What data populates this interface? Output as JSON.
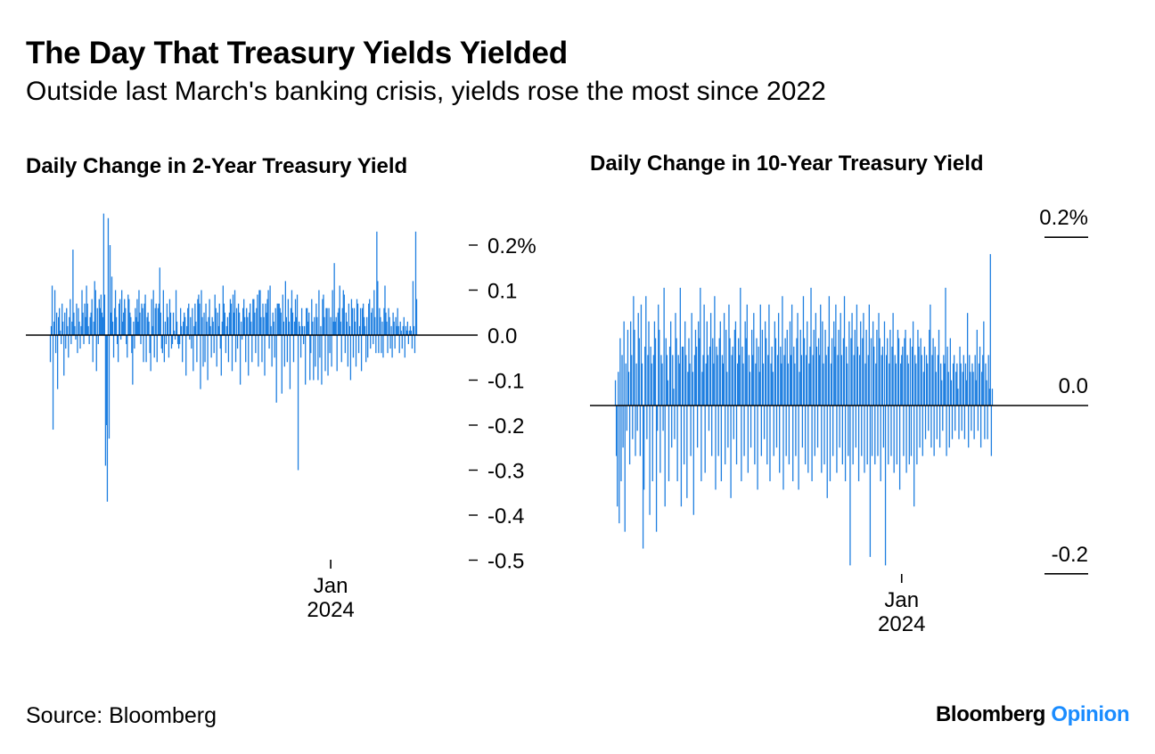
{
  "header": {
    "title": "The Day That Treasury Yields Yielded",
    "subtitle": "Outside last March's banking crisis, yields rose the most since 2022"
  },
  "footer": {
    "source": "Source: Bloomberg",
    "brand_primary": "Bloomberg",
    "brand_secondary": "Opinion"
  },
  "colors": {
    "bar": "#1f7fe0",
    "axis": "#000000",
    "brand_accent": "#1a8cff"
  },
  "chart_data": [
    {
      "type": "bar",
      "title": "Daily Change in 2-Year Treasury Yield",
      "unit": "%",
      "ylim": [
        -0.6,
        0.28
      ],
      "y_ticks": [
        0.2,
        0.1,
        0.0,
        -0.1,
        -0.2,
        -0.3,
        -0.4,
        -0.5
      ],
      "y_tick_labels": [
        "0.2%",
        "0.1",
        "0.0",
        "-0.1",
        "-0.2",
        "-0.3",
        "-0.4",
        "-0.5"
      ],
      "axis_position": "right",
      "x_ticks": [
        {
          "index": 310,
          "label_line1": "Jan",
          "label_line2": "2024"
        }
      ],
      "series": [
        {
          "values": [
            -0.06,
            0.02,
            0.11,
            -0.21,
            0.03,
            0.1,
            -0.04,
            0.05,
            -0.12,
            0.04,
            0.06,
            0.01,
            -0.02,
            0.07,
            0.03,
            -0.09,
            0.05,
            -0.03,
            0.06,
            0.02,
            -0.05,
            0.04,
            0.08,
            -0.02,
            0.03,
            0.19,
            0.05,
            0.02,
            -0.01,
            0.07,
            -0.04,
            0.06,
            0.03,
            -0.03,
            0.02,
            0.1,
            0.05,
            -0.02,
            0.07,
            0.04,
            0.11,
            0.07,
            0.02,
            -0.02,
            0.04,
            0.05,
            0.08,
            -0.06,
            0.03,
            0.12,
            0.1,
            -0.08,
            0.06,
            -0.02,
            0.08,
            0.06,
            0.09,
            0.05,
            0.04,
            0.27,
            0.09,
            -0.29,
            -0.2,
            -0.37,
            0.26,
            -0.23,
            0.2,
            0.05,
            0.13,
            0.03,
            -0.05,
            0.06,
            0.1,
            0.04,
            -0.02,
            -0.06,
            0.07,
            0.08,
            -0.01,
            0.1,
            0.03,
            0.05,
            0.08,
            0.06,
            -0.02,
            -0.05,
            0.09,
            0.08,
            0.05,
            0.04,
            -0.04,
            -0.11,
            0.03,
            -0.03,
            0.06,
            0.04,
            0.08,
            0.03,
            0.1,
            0.05,
            -0.02,
            0.07,
            0.06,
            -0.06,
            0.07,
            0.09,
            -0.06,
            0.04,
            0.05,
            0.03,
            -0.04,
            -0.08,
            0.08,
            0.02,
            0.1,
            -0.05,
            0.06,
            0.07,
            -0.06,
            0.06,
            0.07,
            0.15,
            0.05,
            -0.03,
            -0.04,
            0.1,
            -0.06,
            0.03,
            -0.02,
            0.07,
            0.04,
            -0.05,
            0.08,
            0.05,
            -0.03,
            -0.02,
            0.05,
            0.01,
            -0.01,
            0.1,
            0.03,
            -0.02,
            -0.03,
            -0.02,
            0.06,
            0.02,
            -0.06,
            0.03,
            0.05,
            0.04,
            -0.09,
            0.02,
            0.06,
            0.07,
            -0.01,
            0.04,
            -0.03,
            0.06,
            -0.08,
            0.02,
            0.07,
            0.03,
            -0.06,
            0.08,
            0.09,
            0.07,
            -0.12,
            0.1,
            0.04,
            -0.07,
            0.05,
            -0.06,
            0.07,
            0.03,
            -0.1,
            0.04,
            0.08,
            0.02,
            -0.05,
            0.04,
            0.03,
            -0.04,
            0.09,
            0.06,
            -0.07,
            0.05,
            0.02,
            0.07,
            -0.03,
            -0.09,
            0.03,
            0.11,
            0.07,
            0.05,
            -0.04,
            0.02,
            0.04,
            -0.06,
            0.05,
            0.08,
            0.07,
            -0.08,
            0.09,
            0.05,
            0.1,
            -0.06,
            0.06,
            -0.03,
            0.07,
            0.05,
            -0.11,
            0.03,
            -0.01,
            0.06,
            0.08,
            0.04,
            -0.06,
            0.06,
            0.04,
            -0.09,
            0.05,
            0.07,
            0.03,
            -0.06,
            0.08,
            0.08,
            0.05,
            -0.04,
            0.06,
            0.09,
            -0.07,
            0.1,
            0.1,
            0.04,
            -0.06,
            0.07,
            0.04,
            -0.09,
            0.07,
            0.05,
            0.08,
            0.1,
            -0.03,
            0.11,
            0.02,
            -0.07,
            0.05,
            0.03,
            -0.05,
            0.06,
            -0.15,
            0.07,
            0.07,
            0.07,
            0.06,
            0.05,
            -0.13,
            0.09,
            0.03,
            -0.07,
            0.12,
            0.04,
            -0.06,
            0.08,
            0.03,
            -0.12,
            0.06,
            0.1,
            0.05,
            -0.06,
            0.03,
            0.08,
            0.04,
            0.09,
            -0.3,
            0.03,
            0.02,
            -0.05,
            0.06,
            0.02,
            -0.02,
            0.02,
            -0.11,
            0.06,
            0.06,
            0.03,
            0.05,
            -0.1,
            -0.04,
            0.08,
            0.03,
            -0.1,
            0.04,
            -0.07,
            0.07,
            0.04,
            -0.1,
            0.1,
            -0.05,
            0.02,
            -0.11,
            0.08,
            0.09,
            0.04,
            -0.08,
            0.06,
            0.06,
            -0.09,
            0.06,
            -0.04,
            0.04,
            -0.07,
            0.1,
            0.03,
            0.16,
            0.03,
            0.04,
            -0.08,
            0.05,
            0.06,
            0.11,
            0.03,
            -0.06,
            0.06,
            0.1,
            0.09,
            -0.04,
            0.05,
            0.03,
            -0.07,
            0.07,
            0.02,
            -0.1,
            0.08,
            0.06,
            -0.05,
            0.06,
            0.03,
            -0.07,
            0.08,
            0.07,
            -0.04,
            0.02,
            0.06,
            -0.08,
            0.06,
            0.07,
            0.04,
            0.02,
            -0.06,
            0.04,
            -0.05,
            0.07,
            0.08,
            -0.03,
            0.05,
            0.06,
            -0.02,
            0.1,
            0.04,
            -0.04,
            0.23,
            0.12,
            -0.04,
            0.06,
            0.04,
            -0.04,
            0.03,
            -0.05,
            0.06,
            0.11,
            0.05,
            0.03,
            -0.04,
            0.06,
            0.04,
            -0.03,
            0.02,
            -0.05,
            0.05,
            0.03,
            -0.03,
            0.04,
            0.02,
            0.06,
            0.02,
            -0.04,
            0.03,
            0.01,
            -0.03,
            0.02,
            0.04,
            -0.05,
            0.02,
            0.01,
            0.03,
            -0.02,
            0.01,
            0.02,
            0.01,
            -0.03,
            0.12,
            0.02,
            -0.04,
            0.23,
            0.08
          ]
        }
      ]
    },
    {
      "type": "bar",
      "title": "Daily Change in 10-Year Treasury Yield",
      "unit": "%",
      "ylim": [
        -0.24,
        0.24
      ],
      "y_ticks": [
        0.2,
        0.0,
        -0.2
      ],
      "y_tick_labels": [
        "0.2%",
        "0.0",
        "-0.2"
      ],
      "axis_position": "right",
      "x_ticks": [
        {
          "index": 300,
          "label_line1": "Jan",
          "label_line2": "2024"
        }
      ],
      "series": [
        {
          "values": [
            0.03,
            -0.06,
            -0.12,
            0.04,
            -0.14,
            0.08,
            -0.09,
            0.06,
            -0.05,
            0.1,
            -0.15,
            0.05,
            -0.03,
            0.09,
            0.04,
            -0.07,
            0.1,
            0.06,
            -0.04,
            0.13,
            0.09,
            -0.06,
            0.05,
            -0.03,
            0.11,
            0.08,
            -0.06,
            0.12,
            0.05,
            -0.17,
            -0.1,
            0.07,
            0.13,
            -0.04,
            0.06,
            0.1,
            -0.13,
            0.07,
            0.05,
            -0.09,
            0.06,
            0.1,
            0.08,
            -0.15,
            -0.03,
            0.12,
            0.09,
            -0.08,
            0.06,
            0.05,
            -0.03,
            0.14,
            -0.12,
            0.08,
            0.06,
            0.03,
            -0.09,
            0.07,
            0.1,
            -0.05,
            0.06,
            0.02,
            -0.04,
            0.11,
            0.08,
            -0.09,
            0.06,
            0.05,
            0.14,
            -0.12,
            0.07,
            0.07,
            -0.07,
            0.1,
            0.06,
            -0.11,
            0.04,
            0.08,
            0.05,
            -0.06,
            0.11,
            0.04,
            -0.13,
            0.06,
            0.09,
            0.07,
            -0.05,
            0.1,
            0.08,
            0.14,
            -0.09,
            0.04,
            0.06,
            0.12,
            -0.08,
            0.05,
            0.1,
            0.06,
            -0.03,
            0.07,
            0.11,
            -0.06,
            0.08,
            0.05,
            0.13,
            -0.1,
            0.07,
            0.06,
            -0.06,
            0.08,
            0.1,
            -0.09,
            0.06,
            0.05,
            0.11,
            -0.07,
            0.09,
            0.04,
            -0.05,
            0.12,
            0.08,
            -0.11,
            0.06,
            0.07,
            -0.04,
            0.09,
            0.1,
            -0.07,
            0.05,
            0.08,
            0.06,
            0.14,
            -0.09,
            0.07,
            0.05,
            -0.06,
            0.1,
            0.08,
            0.12,
            -0.08,
            0.06,
            0.04,
            -0.05,
            0.09,
            0.06,
            0.11,
            -0.07,
            0.05,
            0.08,
            -0.1,
            0.07,
            0.04,
            0.12,
            -0.06,
            0.09,
            0.05,
            -0.04,
            0.1,
            0.08,
            -0.07,
            0.06,
            0.12,
            -0.09,
            0.05,
            0.07,
            0.04,
            -0.06,
            0.1,
            0.08,
            -0.05,
            0.06,
            0.11,
            -0.08,
            0.07,
            0.05,
            0.13,
            -0.1,
            0.06,
            0.08,
            -0.06,
            0.09,
            0.05,
            -0.07,
            0.1,
            0.06,
            0.12,
            -0.09,
            0.07,
            0.05,
            -0.06,
            0.08,
            0.11,
            -0.1,
            0.04,
            0.09,
            0.06,
            -0.05,
            0.13,
            0.08,
            -0.07,
            0.06,
            0.1,
            -0.08,
            0.05,
            0.07,
            0.14,
            -0.09,
            0.06,
            0.09,
            -0.06,
            0.11,
            0.07,
            -0.05,
            0.08,
            0.06,
            0.12,
            -0.08,
            0.1,
            0.05,
            -0.07,
            0.09,
            0.06,
            -0.11,
            0.07,
            0.13,
            -0.09,
            0.05,
            0.08,
            -0.06,
            0.1,
            0.07,
            0.12,
            -0.08,
            0.06,
            0.09,
            -0.05,
            0.11,
            0.06,
            -0.07,
            0.08,
            0.13,
            -0.09,
            0.07,
            0.05,
            -0.06,
            0.1,
            -0.19,
            0.08,
            0.11,
            -0.07,
            0.06,
            0.09,
            -0.05,
            0.12,
            0.07,
            -0.09,
            0.06,
            0.1,
            -0.06,
            0.08,
            0.11,
            -0.08,
            0.05,
            0.09,
            -0.07,
            0.06,
            0.12,
            -0.18,
            0.08,
            -0.06,
            0.1,
            0.07,
            -0.07,
            0.05,
            0.09,
            -0.06,
            0.11,
            0.08,
            -0.09,
            0.06,
            0.07,
            -0.05,
            0.1,
            -0.19,
            0.06,
            0.08,
            -0.07,
            0.05,
            0.09,
            -0.06,
            0.07,
            0.11,
            -0.08,
            0.06,
            0.05,
            -0.07,
            0.09,
            0.08,
            -0.1,
            0.05,
            0.06,
            0.07,
            -0.06,
            0.08,
            0.09,
            -0.08,
            0.06,
            0.05,
            -0.07,
            0.08,
            -0.06,
            0.07,
            0.1,
            -0.12,
            0.06,
            0.05,
            -0.07,
            0.09,
            0.07,
            -0.05,
            0.08,
            0.06,
            -0.06,
            0.04,
            0.07,
            -0.04,
            0.06,
            0.05,
            -0.03,
            0.09,
            0.12,
            -0.05,
            0.06,
            0.08,
            -0.06,
            0.07,
            0.04,
            -0.04,
            0.06,
            0.09,
            -0.05,
            0.05,
            0.03,
            -0.03,
            0.06,
            0.05,
            0.14,
            -0.06,
            0.07,
            0.04,
            -0.05,
            0.08,
            0.03,
            -0.04,
            0.05,
            0.06,
            -0.03,
            0.04,
            0.05,
            0.02,
            -0.04,
            0.07,
            0.05,
            -0.03,
            0.04,
            0.06,
            -0.04,
            0.05,
            0.03,
            0.11,
            -0.05,
            0.06,
            0.04,
            -0.03,
            0.05,
            0.04,
            -0.04,
            0.06,
            0.03,
            0.09,
            -0.03,
            0.05,
            0.07,
            -0.05,
            0.04,
            0.06,
            0.1,
            -0.04,
            0.05,
            0.03,
            -0.04,
            0.06,
            0.02,
            0.18,
            -0.06,
            0.02
          ]
        }
      ]
    }
  ]
}
